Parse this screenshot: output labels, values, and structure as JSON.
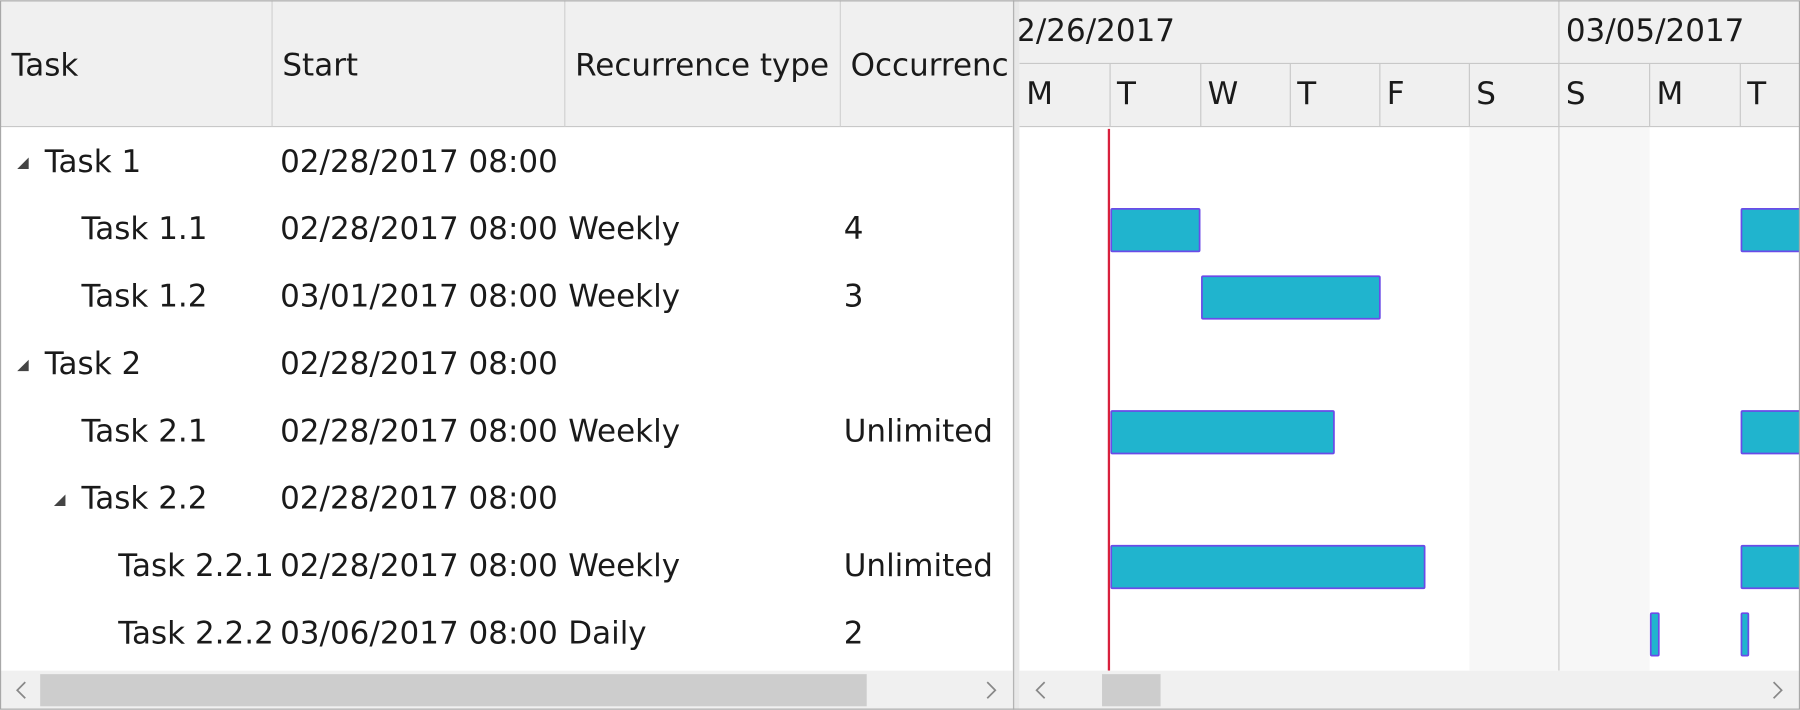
{
  "grid": {
    "columns": [
      "Task",
      "Start",
      "Recurrence type",
      "Occurrenc"
    ],
    "rows": [
      [
        "Task 1",
        "02/28/2017 08:00",
        "",
        ""
      ],
      [
        "Task 1.1",
        "02/28/2017 08:00",
        "Weekly",
        "4"
      ],
      [
        "Task 1.2",
        "03/01/2017 08:00",
        "Weekly",
        "3"
      ],
      [
        "Task 2",
        "02/28/2017 08:00",
        "",
        ""
      ],
      [
        "Task 2.1",
        "02/28/2017 08:00",
        "Weekly",
        "Unlimited"
      ],
      [
        "Task 2.2",
        "02/28/2017 08:00",
        "",
        ""
      ],
      [
        "Task 2.2.1",
        "02/28/2017 08:00",
        "Weekly",
        "Unlimited"
      ],
      [
        "Task 2.2.2",
        "03/06/2017 08:00",
        "Daily",
        "2"
      ]
    ]
  },
  "timeline": {
    "weeks": [
      "02/26/2017",
      "03/05/2017"
    ],
    "days": [
      "M",
      "T",
      "W",
      "T",
      "F",
      "S",
      "S",
      "M",
      "T"
    ]
  }
}
